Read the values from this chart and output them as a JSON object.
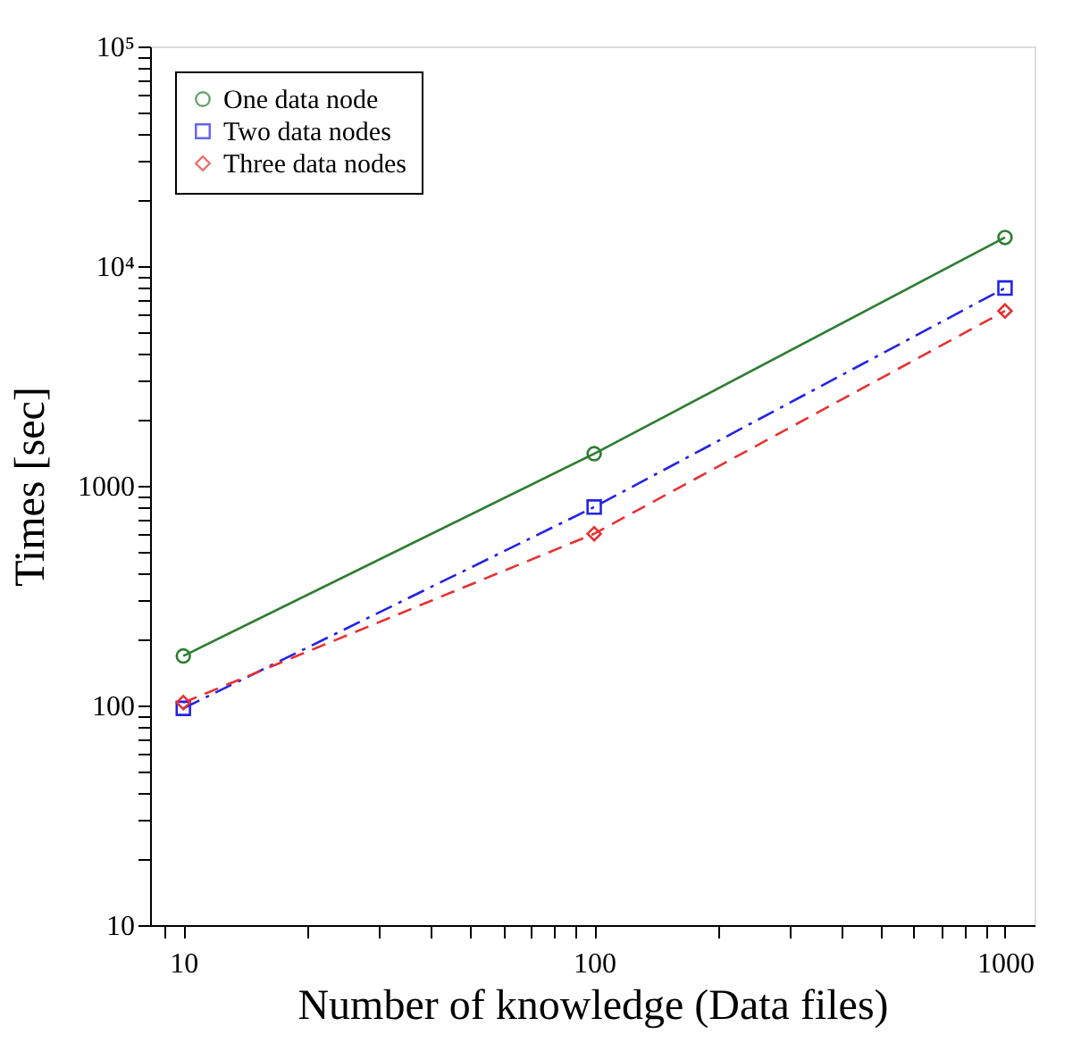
{
  "chart_data": {
    "type": "line",
    "xlabel": "Number of knowledge (Data files)",
    "ylabel": "Times [sec]",
    "x": [
      10,
      100,
      1000
    ],
    "log": "xy",
    "grid": false,
    "legend": "top left",
    "xlim": [
      8.3,
      1180
    ],
    "ylim": [
      10,
      100000
    ],
    "xticks": [
      {
        "value": 9,
        "label": null
      },
      10,
      {
        "value": 20,
        "label": null
      },
      {
        "value": 30,
        "label": null
      },
      {
        "value": 40,
        "label": null
      },
      {
        "value": 50,
        "label": null
      },
      {
        "value": 60,
        "label": null
      },
      {
        "value": 70,
        "label": null
      },
      {
        "value": 80,
        "label": null
      },
      {
        "value": 90,
        "label": null
      },
      100,
      {
        "value": 200,
        "label": null
      },
      {
        "value": 300,
        "label": null
      },
      {
        "value": 400,
        "label": null
      },
      {
        "value": 500,
        "label": null
      },
      {
        "value": 600,
        "label": null
      },
      {
        "value": 700,
        "label": null
      },
      {
        "value": 800,
        "label": null
      },
      {
        "value": 900,
        "label": null
      },
      1000
    ],
    "yticks": [
      10,
      {
        "value": 20,
        "label": null
      },
      {
        "value": 30,
        "label": null
      },
      {
        "value": 40,
        "label": null
      },
      {
        "value": 50,
        "label": null
      },
      {
        "value": 60,
        "label": null
      },
      {
        "value": 70,
        "label": null
      },
      {
        "value": 80,
        "label": null
      },
      {
        "value": 90,
        "label": null
      },
      100,
      {
        "value": 200,
        "label": null
      },
      {
        "value": 300,
        "label": null
      },
      {
        "value": 400,
        "label": null
      },
      {
        "value": 500,
        "label": null
      },
      {
        "value": 600,
        "label": null
      },
      {
        "value": 700,
        "label": null
      },
      {
        "value": 800,
        "label": null
      },
      {
        "value": 900,
        "label": null
      },
      1000,
      {
        "value": 2000,
        "label": null
      },
      {
        "value": 3000,
        "label": null
      },
      {
        "value": 4000,
        "label": null
      },
      {
        "value": 5000,
        "label": null
      },
      {
        "value": 6000,
        "label": null
      },
      {
        "value": 7000,
        "label": null
      },
      {
        "value": 8000,
        "label": null
      },
      {
        "value": 9000,
        "label": null
      },
      {
        "value": 10000,
        "label": "10⁴"
      },
      {
        "value": 20000,
        "label": null
      },
      {
        "value": 30000,
        "label": null
      },
      {
        "value": 40000,
        "label": null
      },
      {
        "value": 50000,
        "label": null
      },
      {
        "value": 60000,
        "label": null
      },
      {
        "value": 70000,
        "label": null
      },
      {
        "value": 80000,
        "label": null
      },
      {
        "value": 90000,
        "label": null
      },
      {
        "value": 100000,
        "label": "10⁵"
      }
    ],
    "series": [
      {
        "name": "One data node",
        "color": "#2e7d32",
        "marker": "circle",
        "line_style": "solid",
        "values": [
          168,
          1400,
          13500
        ]
      },
      {
        "name": "Two data nodes",
        "color": "#2323e6",
        "marker": "square",
        "line_style": "dashdot",
        "values": [
          97,
          800,
          7950
        ]
      },
      {
        "name": "Three data nodes",
        "color": "#e63232",
        "marker": "diamond",
        "line_style": "dashed",
        "values": [
          103,
          605,
          6250
        ]
      }
    ]
  }
}
